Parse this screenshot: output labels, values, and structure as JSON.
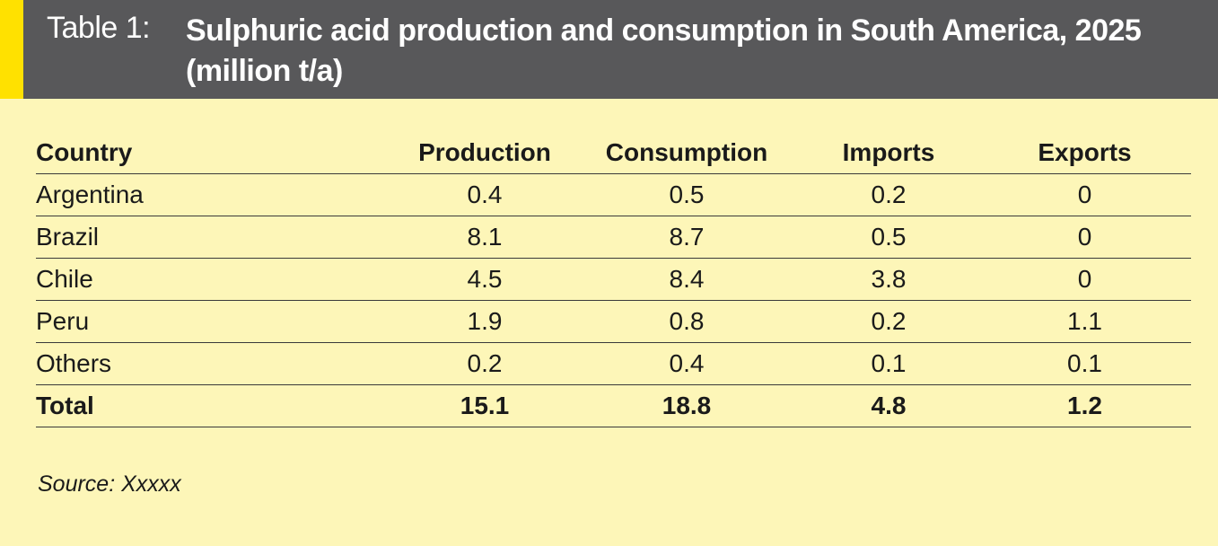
{
  "header": {
    "label": "Table 1:",
    "title": "Sulphuric acid production and consumption in South America, 2025 (million t/a)"
  },
  "table": {
    "columns": [
      "Country",
      "Production",
      "Consumption",
      "Imports",
      "Exports"
    ],
    "rows": [
      [
        "Argentina",
        "0.4",
        "0.5",
        "0.2",
        "0"
      ],
      [
        "Brazil",
        "8.1",
        "8.7",
        "0.5",
        "0"
      ],
      [
        "Chile",
        "4.5",
        "8.4",
        "3.8",
        "0"
      ],
      [
        "Peru",
        "1.9",
        "0.8",
        "0.2",
        "1.1"
      ],
      [
        "Others",
        "0.2",
        "0.4",
        "0.1",
        "0.1"
      ]
    ],
    "total": [
      "Total",
      "15.1",
      "18.8",
      "4.8",
      "1.2"
    ]
  },
  "colors": {
    "background": "#fdf6b8",
    "header": "#58585a",
    "accent": "#ffe100"
  },
  "source": "Source: Xxxxx"
}
